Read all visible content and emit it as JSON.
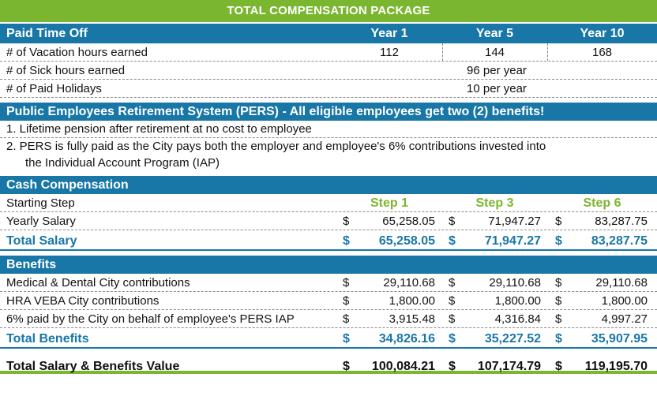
{
  "title": "TOTAL COMPENSATION PACKAGE",
  "pto": {
    "header": "Paid Time Off",
    "years": [
      "Year 1",
      "Year 5",
      "Year 10"
    ],
    "vacation_label": "# of Vacation hours earned",
    "vacation_values": [
      "112",
      "144",
      "168"
    ],
    "sick_label": "# of Sick hours earned",
    "sick_value": "96 per year",
    "holidays_label": "# of Paid Holidays",
    "holidays_value": "10 per year"
  },
  "pers": {
    "header": "Public Employees Retirement System (PERS) - All eligible employees get two (2) benefits!",
    "item1": "1. Lifetime pension after retirement at no cost to employee",
    "item2a": "2.  PERS is fully paid as the City pays both the employer and employee's 6% contributions invested into",
    "item2b": "the Individual Account Program (IAP)"
  },
  "cash": {
    "header": "Cash Compensation",
    "starting_step_label": "Starting Step",
    "steps": [
      "Step 1",
      "Step 3",
      "Step 6"
    ],
    "yearly_salary_label": "Yearly Salary",
    "yearly_salary": [
      "65,258.05",
      "71,947.27",
      "83,287.75"
    ],
    "total_salary_label": "Total Salary",
    "total_salary": [
      "65,258.05",
      "71,947.27",
      "83,287.75"
    ],
    "currency": "$"
  },
  "benefits": {
    "header": "Benefits",
    "rows": [
      {
        "label": "Medical & Dental City contributions",
        "values": [
          "29,110.68",
          "29,110.68",
          "29,110.68"
        ]
      },
      {
        "label": "HRA VEBA City contributions",
        "values": [
          "1,800.00",
          "1,800.00",
          "1,800.00"
        ]
      },
      {
        "label": "6% paid by the City on behalf of employee's PERS IAP",
        "values": [
          "3,915.48",
          "4,316.84",
          "4,997.27"
        ]
      }
    ],
    "total_label": "Total Benefits",
    "total_values": [
      "34,826.16",
      "35,227.52",
      "35,907.95"
    ]
  },
  "grand": {
    "label": "Total Salary & Benefits Value",
    "values": [
      "100,084.21",
      "107,174.79",
      "119,195.70"
    ]
  },
  "colors": {
    "green": "#7ab62f",
    "blue": "#1877a6"
  }
}
